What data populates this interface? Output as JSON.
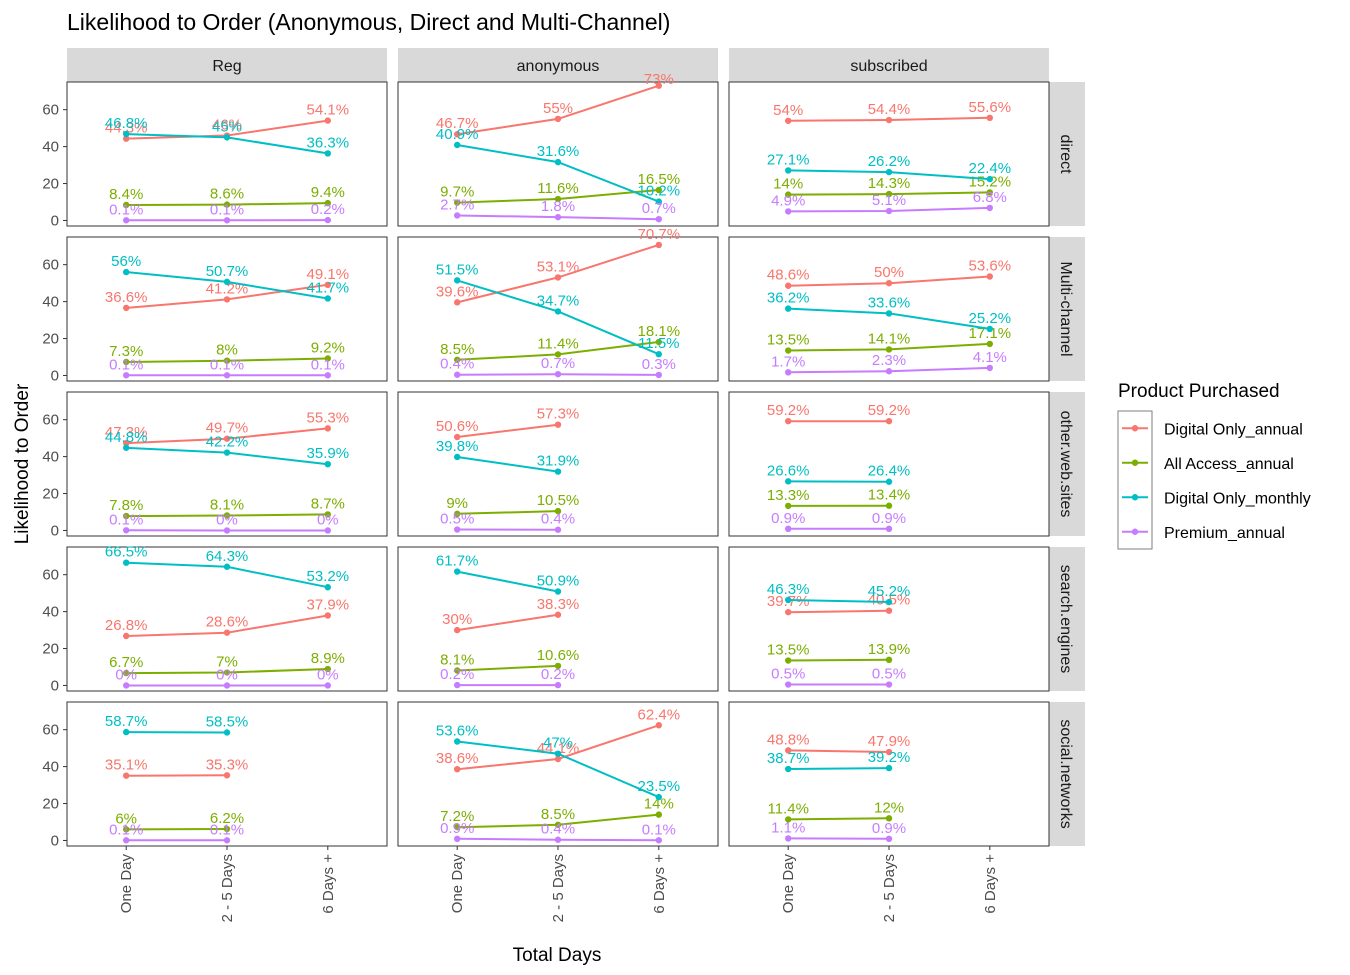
{
  "chart_data": {
    "type": "line",
    "title": "Likelihood to Order (Anonymous, Direct and Multi-Channel)",
    "xlabel": "Total Days",
    "ylabel": "Likelihood to Order",
    "categories": [
      "One Day",
      "2 - 5 Days",
      "6 Days +"
    ],
    "yticks": [
      "0",
      "20",
      "40",
      "60"
    ],
    "ylim": [
      -3,
      75
    ],
    "col_facets": [
      "Reg",
      "anonymous",
      "subscribed"
    ],
    "row_facets": [
      "direct",
      "Multi-channel",
      "other.web.sites",
      "search.engines",
      "social.networks"
    ],
    "legend_title": "Product Purchased",
    "legend_position": "right",
    "series_names": [
      "Digital Only_annual",
      "All Access_annual",
      "Digital Only_monthly",
      "Premium_annual"
    ],
    "series_colors": [
      "#F8766D",
      "#7CAE00",
      "#00BFC4",
      "#C77CFF"
    ],
    "panels": [
      {
        "row": 0,
        "col": 0,
        "series": [
          {
            "values": [
              44.3,
              46.0,
              54.1
            ],
            "labels": [
              "44.3%",
              "46%",
              "54.1%"
            ]
          },
          {
            "values": [
              8.4,
              8.6,
              9.4
            ],
            "labels": [
              "8.4%",
              "8.6%",
              "9.4%"
            ]
          },
          {
            "values": [
              46.8,
              45.0,
              36.3
            ],
            "labels": [
              "46.8%",
              "45%",
              "36.3%"
            ]
          },
          {
            "values": [
              0.1,
              0.1,
              0.2
            ],
            "labels": [
              "0.1%",
              "0.1%",
              "0.2%"
            ]
          }
        ]
      },
      {
        "row": 0,
        "col": 1,
        "series": [
          {
            "values": [
              46.7,
              55.0,
              73.0
            ],
            "labels": [
              "46.7%",
              "55%",
              "73%"
            ]
          },
          {
            "values": [
              9.7,
              11.6,
              16.5
            ],
            "labels": [
              "9.7%",
              "11.6%",
              "16.5%"
            ]
          },
          {
            "values": [
              40.9,
              31.6,
              10.2
            ],
            "labels": [
              "40.9%",
              "31.6%",
              "10.2%"
            ]
          },
          {
            "values": [
              2.7,
              1.8,
              0.7
            ],
            "labels": [
              "2.7%",
              "1.8%",
              "0.7%"
            ]
          }
        ]
      },
      {
        "row": 0,
        "col": 2,
        "series": [
          {
            "values": [
              54.0,
              54.4,
              55.6
            ],
            "labels": [
              "54%",
              "54.4%",
              "55.6%"
            ]
          },
          {
            "values": [
              14.0,
              14.3,
              15.2
            ],
            "labels": [
              "14%",
              "14.3%",
              "15.2%"
            ]
          },
          {
            "values": [
              27.1,
              26.2,
              22.4
            ],
            "labels": [
              "27.1%",
              "26.2%",
              "22.4%"
            ]
          },
          {
            "values": [
              4.9,
              5.1,
              6.8
            ],
            "labels": [
              "4.9%",
              "5.1%",
              "6.8%"
            ]
          }
        ]
      },
      {
        "row": 1,
        "col": 0,
        "series": [
          {
            "values": [
              36.6,
              41.2,
              49.1
            ],
            "labels": [
              "36.6%",
              "41.2%",
              "49.1%"
            ]
          },
          {
            "values": [
              7.3,
              8.0,
              9.2
            ],
            "labels": [
              "7.3%",
              "8%",
              "9.2%"
            ]
          },
          {
            "values": [
              56.0,
              50.7,
              41.7
            ],
            "labels": [
              "56%",
              "50.7%",
              "41.7%"
            ]
          },
          {
            "values": [
              0.1,
              0.1,
              0.1
            ],
            "labels": [
              "0.1%",
              "0.1%",
              "0.1%"
            ]
          }
        ]
      },
      {
        "row": 1,
        "col": 1,
        "series": [
          {
            "values": [
              39.6,
              53.1,
              70.7
            ],
            "labels": [
              "39.6%",
              "53.1%",
              "70.7%"
            ]
          },
          {
            "values": [
              8.5,
              11.4,
              18.1
            ],
            "labels": [
              "8.5%",
              "11.4%",
              "18.1%"
            ]
          },
          {
            "values": [
              51.5,
              34.7,
              11.5
            ],
            "labels": [
              "51.5%",
              "34.7%",
              "11.5%"
            ]
          },
          {
            "values": [
              0.4,
              0.7,
              0.3
            ],
            "labels": [
              "0.4%",
              "0.7%",
              "0.3%"
            ]
          }
        ]
      },
      {
        "row": 1,
        "col": 2,
        "series": [
          {
            "values": [
              48.6,
              50.0,
              53.6
            ],
            "labels": [
              "48.6%",
              "50%",
              "53.6%"
            ]
          },
          {
            "values": [
              13.5,
              14.1,
              17.1
            ],
            "labels": [
              "13.5%",
              "14.1%",
              "17.1%"
            ]
          },
          {
            "values": [
              36.2,
              33.6,
              25.2
            ],
            "labels": [
              "36.2%",
              "33.6%",
              "25.2%"
            ]
          },
          {
            "values": [
              1.7,
              2.3,
              4.1
            ],
            "labels": [
              "1.7%",
              "2.3%",
              "4.1%"
            ]
          }
        ]
      },
      {
        "row": 2,
        "col": 0,
        "series": [
          {
            "values": [
              47.3,
              49.7,
              55.3
            ],
            "labels": [
              "47.3%",
              "49.7%",
              "55.3%"
            ]
          },
          {
            "values": [
              7.8,
              8.1,
              8.7
            ],
            "labels": [
              "7.8%",
              "8.1%",
              "8.7%"
            ]
          },
          {
            "values": [
              44.8,
              42.2,
              35.9
            ],
            "labels": [
              "44.8%",
              "42.2%",
              "35.9%"
            ]
          },
          {
            "values": [
              0.1,
              0.0,
              0.0
            ],
            "labels": [
              "0.1%",
              "0%",
              "0%"
            ]
          }
        ]
      },
      {
        "row": 2,
        "col": 1,
        "series": [
          {
            "values": [
              50.6,
              57.3,
              null
            ],
            "labels": [
              "50.6%",
              "57.3%",
              ""
            ]
          },
          {
            "values": [
              9.0,
              10.5,
              null
            ],
            "labels": [
              "9%",
              "10.5%",
              ""
            ]
          },
          {
            "values": [
              39.8,
              31.9,
              null
            ],
            "labels": [
              "39.8%",
              "31.9%",
              ""
            ]
          },
          {
            "values": [
              0.5,
              0.4,
              null
            ],
            "labels": [
              "0.5%",
              "0.4%",
              ""
            ]
          }
        ]
      },
      {
        "row": 2,
        "col": 2,
        "series": [
          {
            "values": [
              59.2,
              59.2,
              null
            ],
            "labels": [
              "59.2%",
              "59.2%",
              ""
            ]
          },
          {
            "values": [
              13.3,
              13.4,
              null
            ],
            "labels": [
              "13.3%",
              "13.4%",
              ""
            ]
          },
          {
            "values": [
              26.6,
              26.4,
              null
            ],
            "labels": [
              "26.6%",
              "26.4%",
              ""
            ]
          },
          {
            "values": [
              0.9,
              0.9,
              null
            ],
            "labels": [
              "0.9%",
              "0.9%",
              ""
            ]
          }
        ]
      },
      {
        "row": 3,
        "col": 0,
        "series": [
          {
            "values": [
              26.8,
              28.6,
              37.9
            ],
            "labels": [
              "26.8%",
              "28.6%",
              "37.9%"
            ]
          },
          {
            "values": [
              6.7,
              7.0,
              8.9
            ],
            "labels": [
              "6.7%",
              "7%",
              "8.9%"
            ]
          },
          {
            "values": [
              66.5,
              64.3,
              53.2
            ],
            "labels": [
              "66.5%",
              "64.3%",
              "53.2%"
            ]
          },
          {
            "values": [
              0.0,
              0.0,
              0.0
            ],
            "labels": [
              "0%",
              "0%",
              "0%"
            ]
          }
        ]
      },
      {
        "row": 3,
        "col": 1,
        "series": [
          {
            "values": [
              30.0,
              38.3,
              null
            ],
            "labels": [
              "30%",
              "38.3%",
              ""
            ]
          },
          {
            "values": [
              8.1,
              10.6,
              null
            ],
            "labels": [
              "8.1%",
              "10.6%",
              ""
            ]
          },
          {
            "values": [
              61.7,
              50.9,
              null
            ],
            "labels": [
              "61.7%",
              "50.9%",
              ""
            ]
          },
          {
            "values": [
              0.2,
              0.2,
              null
            ],
            "labels": [
              "0.2%",
              "0.2%",
              ""
            ]
          }
        ]
      },
      {
        "row": 3,
        "col": 2,
        "series": [
          {
            "values": [
              39.7,
              40.5,
              null
            ],
            "labels": [
              "39.7%",
              "40.5%",
              ""
            ]
          },
          {
            "values": [
              13.5,
              13.9,
              null
            ],
            "labels": [
              "13.5%",
              "13.9%",
              ""
            ]
          },
          {
            "values": [
              46.3,
              45.2,
              null
            ],
            "labels": [
              "46.3%",
              "45.2%",
              ""
            ]
          },
          {
            "values": [
              0.5,
              0.5,
              null
            ],
            "labels": [
              "0.5%",
              "0.5%",
              ""
            ]
          }
        ]
      },
      {
        "row": 4,
        "col": 0,
        "series": [
          {
            "values": [
              35.1,
              35.3,
              null
            ],
            "labels": [
              "35.1%",
              "35.3%",
              ""
            ]
          },
          {
            "values": [
              6.0,
              6.2,
              null
            ],
            "labels": [
              "6%",
              "6.2%",
              ""
            ]
          },
          {
            "values": [
              58.7,
              58.5,
              null
            ],
            "labels": [
              "58.7%",
              "58.5%",
              ""
            ]
          },
          {
            "values": [
              0.1,
              0.1,
              null
            ],
            "labels": [
              "0.1%",
              "0.1%",
              ""
            ]
          }
        ]
      },
      {
        "row": 4,
        "col": 1,
        "series": [
          {
            "values": [
              38.6,
              44.1,
              62.4
            ],
            "labels": [
              "38.6%",
              "44.1%",
              "62.4%"
            ]
          },
          {
            "values": [
              7.2,
              8.5,
              14.0
            ],
            "labels": [
              "7.2%",
              "8.5%",
              "14%"
            ]
          },
          {
            "values": [
              53.6,
              47.0,
              23.5
            ],
            "labels": [
              "53.6%",
              "47%",
              "23.5%"
            ]
          },
          {
            "values": [
              0.9,
              0.4,
              0.1
            ],
            "labels": [
              "0.9%",
              "0.4%",
              "0.1%"
            ]
          }
        ]
      },
      {
        "row": 4,
        "col": 2,
        "series": [
          {
            "values": [
              48.8,
              47.9,
              null
            ],
            "labels": [
              "48.8%",
              "47.9%",
              ""
            ]
          },
          {
            "values": [
              11.4,
              12.0,
              null
            ],
            "labels": [
              "11.4%",
              "12%",
              ""
            ]
          },
          {
            "values": [
              38.7,
              39.2,
              null
            ],
            "labels": [
              "38.7%",
              "39.2%",
              ""
            ]
          },
          {
            "values": [
              1.1,
              0.9,
              null
            ],
            "labels": [
              "1.1%",
              "0.9%",
              ""
            ]
          }
        ]
      }
    ]
  }
}
